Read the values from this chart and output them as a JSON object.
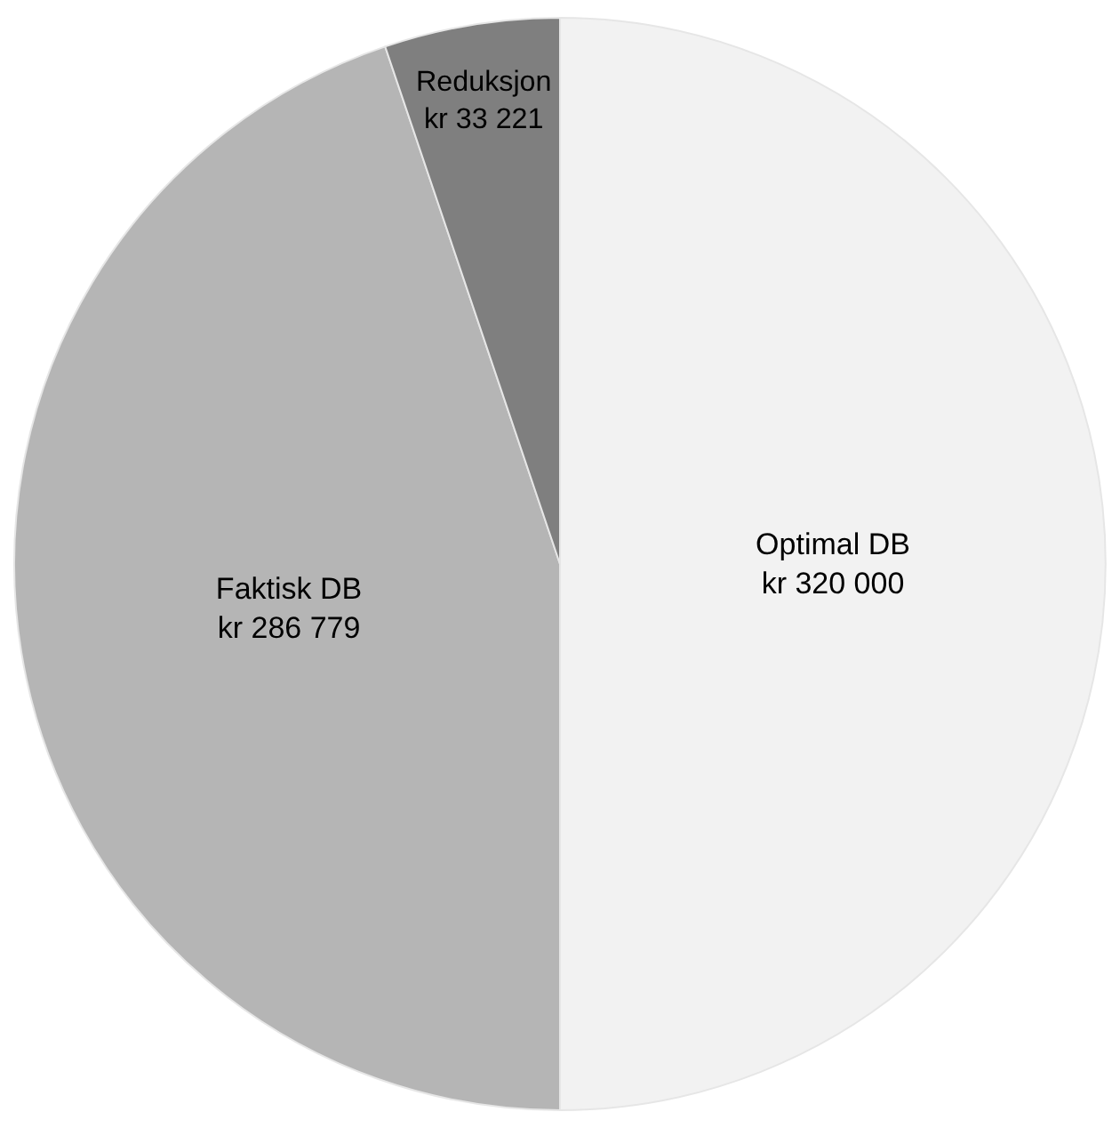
{
  "chart_data": {
    "type": "pie",
    "categories": [
      "Optimal DB",
      "Faktisk DB",
      "Reduksjon"
    ],
    "values": [
      320000,
      286779,
      33221
    ],
    "value_labels": [
      "kr 320 000",
      "kr 286 779",
      "kr 33 221"
    ],
    "colors": [
      "#f2f2f2",
      "#b5b5b5",
      "#7f7f7f"
    ],
    "legend": false
  }
}
